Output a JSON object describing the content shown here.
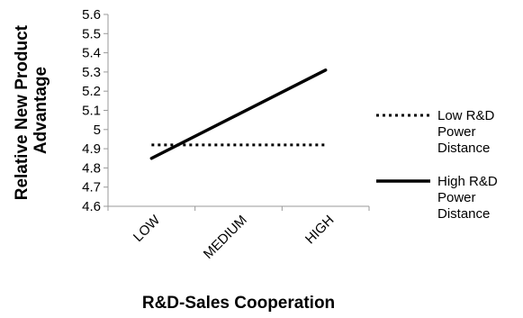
{
  "chart_data": {
    "type": "line",
    "categories": [
      "LOW",
      "MEDIUM",
      "HIGH"
    ],
    "xlabel": "R&D-Sales Cooperation",
    "ylabel_lines": [
      "Relative New Product",
      "Advantage"
    ],
    "ylim": [
      4.6,
      5.6
    ],
    "yticks": [
      "4.6",
      "4.7",
      "4.8",
      "4.9",
      "5",
      "5.1",
      "5.2",
      "5.3",
      "5.4",
      "5.5",
      "5.6"
    ],
    "grid": false,
    "legend_position": "right",
    "series": [
      {
        "name_lines": [
          "Low R&D",
          "Power",
          "Distance"
        ],
        "values": [
          4.92,
          4.92,
          4.92
        ],
        "style": "dotted",
        "color": "#000000"
      },
      {
        "name_lines": [
          "High R&D",
          "Power",
          "Distance"
        ],
        "values": [
          4.85,
          5.08,
          5.31
        ],
        "style": "solid",
        "color": "#000000"
      }
    ]
  }
}
